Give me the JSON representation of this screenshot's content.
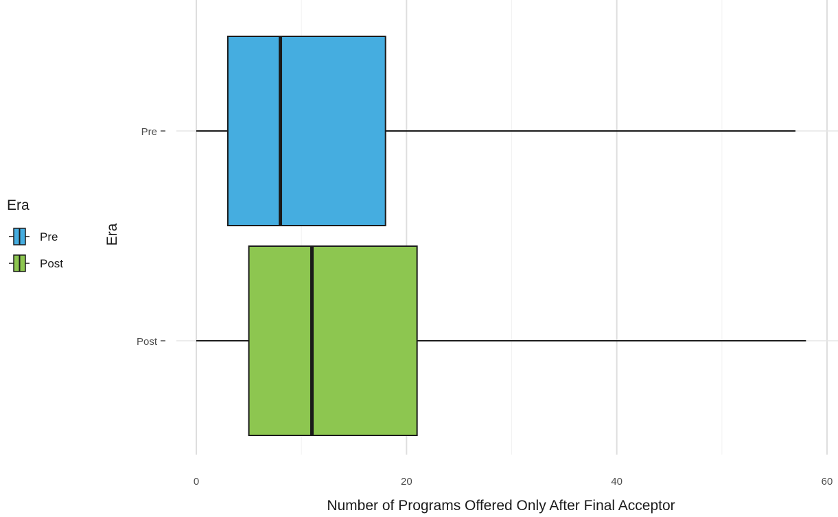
{
  "chart_data": {
    "type": "boxplot",
    "orientation": "horizontal",
    "xlabel": "Number of Programs Offered Only After Final Acceptor",
    "ylabel": "Era",
    "xlim": [
      0,
      60
    ],
    "x_ticks": [
      0,
      20,
      40,
      60
    ],
    "grid": true,
    "legend": {
      "title": "Era",
      "position": "left",
      "entries": [
        "Pre",
        "Post"
      ]
    },
    "categories": [
      "Pre",
      "Post"
    ],
    "series": [
      {
        "name": "Pre",
        "color": "#45ADE0",
        "whisker_low": 0,
        "q1": 3,
        "median": 8,
        "q3": 18,
        "whisker_high": 57
      },
      {
        "name": "Post",
        "color": "#8DC650",
        "whisker_low": 0,
        "q1": 5,
        "median": 11,
        "q3": 21,
        "whisker_high": 58
      }
    ]
  }
}
